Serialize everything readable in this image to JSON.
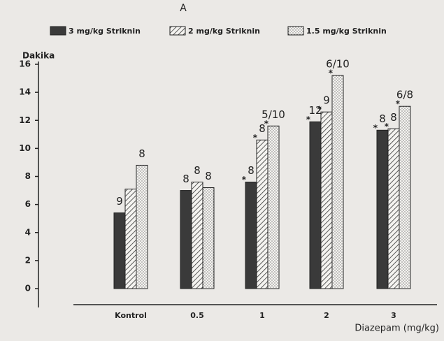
{
  "chart_data": {
    "type": "bar",
    "title": "A",
    "y_label": "Dakika",
    "x_label": "Diazepam (mg/kg)",
    "categories": [
      "Kontrol",
      "0.5",
      "1",
      "2",
      "3"
    ],
    "series": [
      {
        "name": "3 mg/kg Striknin",
        "color": "#3a3a3a",
        "pattern": "solid",
        "values": [
          5.4,
          7.0,
          7.6,
          11.9,
          11.3
        ],
        "annotations": [
          "9",
          "8",
          "8",
          "12",
          "8"
        ],
        "significance_labels": [
          null,
          null,
          "*",
          "*",
          "*"
        ]
      },
      {
        "name": "2 mg/kg Striknin",
        "color": "#3a3a3a",
        "pattern": "hatch",
        "values": [
          7.1,
          7.6,
          10.6,
          12.6,
          11.4
        ],
        "annotations": [
          "",
          "8",
          "8",
          "9",
          "8"
        ],
        "significance_labels": [
          null,
          null,
          "*",
          "*",
          "*"
        ]
      },
      {
        "name": "1.5 mg/kg Striknin",
        "color": "#3a3a3a",
        "pattern": "dots",
        "values": [
          8.8,
          7.2,
          11.6,
          15.2,
          13.0
        ],
        "annotations": [
          "8",
          "8",
          "5/10",
          "6/10",
          "6/8"
        ],
        "significance_labels": [
          null,
          null,
          "*",
          "*",
          "*"
        ]
      }
    ],
    "ylim": [
      0,
      16
    ],
    "yticks": [
      0,
      2,
      4,
      6,
      8,
      10,
      12,
      14,
      16
    ],
    "legend": "top"
  }
}
